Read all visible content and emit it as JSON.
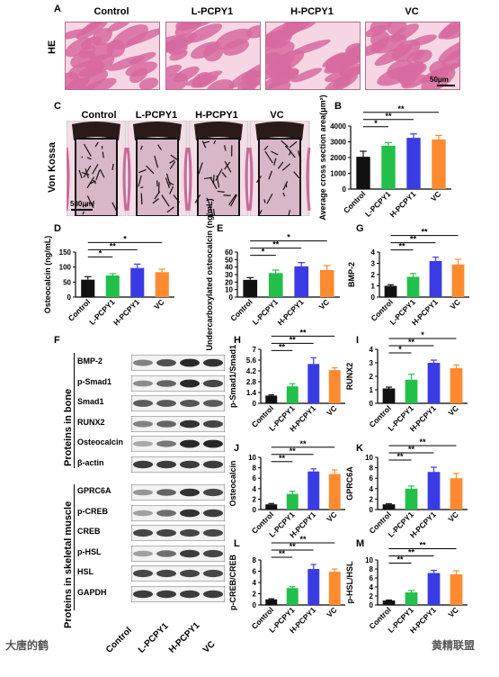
{
  "colors": {
    "control": "#111111",
    "l": "#22c04a",
    "h": "#3b3be6",
    "vc": "#ff8a30",
    "he_bg": "#f0bcd2",
    "fiber": "#d76aa0"
  },
  "panelA": {
    "letter": "A",
    "row_label": "HE",
    "groups": [
      "Control",
      "L-PCPY1",
      "H-PCPY1",
      "VC"
    ],
    "scale": "50μm"
  },
  "panelC": {
    "letter": "C",
    "row_label": "Von Kossa",
    "groups": [
      "Control",
      "L-PCPY1",
      "H-PCPY1",
      "VC"
    ],
    "scale": "500μm"
  },
  "groups": [
    "Control",
    "L-PCPY1",
    "H-PCPY1",
    "VC"
  ],
  "panelF": {
    "letter": "F",
    "bone_section": "Proteins in bone",
    "muscle_section": "Proteins in skeletal muscle",
    "bone_rows": [
      "BMP-2",
      "p-Smad1",
      "Smad1",
      "RUNX2",
      "Osteocalcin",
      "β-actin"
    ],
    "muscle_rows": [
      "GPRC6A",
      "p-CREB",
      "CREB",
      "p-HSL",
      "HSL",
      "GAPDH"
    ],
    "groups": [
      "Control",
      "L-PCPY1",
      "H-PCPY1",
      "VC"
    ]
  },
  "watermark_left": "大唐的鹤",
  "watermark_right": "黄精联盟",
  "chart_data": [
    {
      "id": "B",
      "type": "bar",
      "ylabel": "Average cross section area(μm²)",
      "ylim": [
        0,
        4000
      ],
      "yticks": [
        0,
        1000,
        2000,
        3000,
        4000
      ],
      "categories": [
        "Control",
        "L-PCPY1",
        "H-PCPY1",
        "VC"
      ],
      "values": [
        2050,
        2750,
        3250,
        3150
      ],
      "errors": [
        350,
        200,
        250,
        250
      ],
      "sig": [
        {
          "from": 0,
          "to": 1,
          "label": "*"
        },
        {
          "from": 0,
          "to": 2,
          "label": "**"
        },
        {
          "from": 0,
          "to": 3,
          "label": "**"
        }
      ]
    },
    {
      "id": "D",
      "type": "bar",
      "ylabel": "Osteocalcin (ng/mL)",
      "ylim": [
        0,
        150
      ],
      "yticks": [
        0,
        50,
        100,
        150
      ],
      "categories": [
        "Control",
        "L-PCPY1",
        "H-PCPY1",
        "VC"
      ],
      "values": [
        58,
        72,
        97,
        83
      ],
      "errors": [
        10,
        6,
        13,
        10
      ],
      "sig": [
        {
          "from": 0,
          "to": 1,
          "label": "*"
        },
        {
          "from": 0,
          "to": 2,
          "label": "**"
        },
        {
          "from": 0,
          "to": 3,
          "label": "*"
        }
      ]
    },
    {
      "id": "E",
      "type": "bar",
      "ylabel": "Undercarboxylated osteocalcin (ng/mL)",
      "ylim": [
        0,
        60
      ],
      "yticks": [
        0,
        10,
        20,
        30,
        40,
        50,
        60
      ],
      "categories": [
        "Control",
        "L-PCPY1",
        "H-PCPY1",
        "VC"
      ],
      "values": [
        23,
        32,
        41,
        36
      ],
      "errors": [
        3,
        4,
        5,
        6
      ],
      "sig": [
        {
          "from": 0,
          "to": 1,
          "label": "*"
        },
        {
          "from": 0,
          "to": 2,
          "label": "**"
        },
        {
          "from": 0,
          "to": 3,
          "label": "*"
        }
      ]
    },
    {
      "id": "G",
      "type": "bar",
      "ylabel": "BMP-2",
      "ylim": [
        0,
        4
      ],
      "yticks": [
        0,
        1,
        2,
        3,
        4
      ],
      "categories": [
        "Control",
        "L-PCPY1",
        "H-PCPY1",
        "VC"
      ],
      "values": [
        1.0,
        1.8,
        3.2,
        2.9
      ],
      "errors": [
        0.1,
        0.3,
        0.35,
        0.45
      ],
      "sig": [
        {
          "from": 0,
          "to": 1,
          "label": "**"
        },
        {
          "from": 0,
          "to": 2,
          "label": "**"
        },
        {
          "from": 0,
          "to": 3,
          "label": "**"
        }
      ]
    },
    {
      "id": "H",
      "type": "bar",
      "ylabel": "p-Smad1/Smad1",
      "ylim": [
        0,
        7.0
      ],
      "yticks": [
        0,
        1.4,
        2.8,
        4.2,
        5.6,
        7.0
      ],
      "categories": [
        "Control",
        "L-PCPY1",
        "H-PCPY1",
        "VC"
      ],
      "values": [
        1.0,
        2.2,
        5.1,
        4.3
      ],
      "errors": [
        0.1,
        0.35,
        0.8,
        0.3
      ],
      "sig": [
        {
          "from": 0,
          "to": 1,
          "label": "**"
        },
        {
          "from": 0,
          "to": 2,
          "label": "**"
        },
        {
          "from": 0,
          "to": 3,
          "label": "**"
        }
      ]
    },
    {
      "id": "I",
      "type": "bar",
      "ylabel": "RUNX2",
      "ylim": [
        0,
        4
      ],
      "yticks": [
        0,
        1,
        2,
        3,
        4
      ],
      "categories": [
        "Control",
        "L-PCPY1",
        "H-PCPY1",
        "VC"
      ],
      "values": [
        1.1,
        1.75,
        3.0,
        2.6
      ],
      "errors": [
        0.1,
        0.4,
        0.2,
        0.25
      ],
      "sig": [
        {
          "from": 0,
          "to": 1,
          "label": "*"
        },
        {
          "from": 0,
          "to": 2,
          "label": "**"
        },
        {
          "from": 0,
          "to": 3,
          "label": "*"
        }
      ]
    },
    {
      "id": "J",
      "type": "bar",
      "ylabel": "Osteocalcin",
      "ylim": [
        0,
        10
      ],
      "yticks": [
        0,
        2,
        4,
        6,
        8,
        10
      ],
      "categories": [
        "Control",
        "L-PCPY1",
        "H-PCPY1",
        "VC"
      ],
      "values": [
        1.0,
        3.0,
        7.3,
        6.8
      ],
      "errors": [
        0.15,
        0.5,
        0.5,
        0.8
      ],
      "sig": [
        {
          "from": 0,
          "to": 1,
          "label": "**"
        },
        {
          "from": 0,
          "to": 2,
          "label": "**"
        },
        {
          "from": 0,
          "to": 3,
          "label": "**"
        }
      ]
    },
    {
      "id": "K",
      "type": "bar",
      "ylabel": "GPRC6A",
      "ylim": [
        0,
        10
      ],
      "yticks": [
        0,
        2,
        4,
        6,
        8,
        10
      ],
      "categories": [
        "Control",
        "L-PCPY1",
        "H-PCPY1",
        "VC"
      ],
      "values": [
        1.0,
        4.0,
        7.2,
        6.0
      ],
      "errors": [
        0.1,
        0.5,
        0.9,
        0.9
      ],
      "sig": [
        {
          "from": 0,
          "to": 1,
          "label": "**"
        },
        {
          "from": 0,
          "to": 2,
          "label": "**"
        },
        {
          "from": 0,
          "to": 3,
          "label": "**"
        }
      ]
    },
    {
      "id": "L",
      "type": "bar",
      "ylabel": "p-CREB/CREB",
      "ylim": [
        0,
        8
      ],
      "yticks": [
        0,
        2,
        4,
        6,
        8
      ],
      "categories": [
        "Control",
        "L-PCPY1",
        "H-PCPY1",
        "VC"
      ],
      "values": [
        1.0,
        3.0,
        6.4,
        5.9
      ],
      "errors": [
        0.1,
        0.25,
        0.8,
        0.5
      ],
      "sig": [
        {
          "from": 0,
          "to": 1,
          "label": "**"
        },
        {
          "from": 0,
          "to": 2,
          "label": "**"
        },
        {
          "from": 0,
          "to": 3,
          "label": "**"
        }
      ]
    },
    {
      "id": "M",
      "type": "bar",
      "ylabel": "p-HSL/HSL",
      "ylim": [
        0,
        10
      ],
      "yticks": [
        0,
        2,
        4,
        6,
        8,
        10
      ],
      "categories": [
        "Control",
        "L-PCPY1",
        "H-PCPY1",
        "VC"
      ],
      "values": [
        1.0,
        2.8,
        7.1,
        6.8
      ],
      "errors": [
        0.1,
        0.4,
        0.6,
        0.8
      ],
      "sig": [
        {
          "from": 0,
          "to": 1,
          "label": "**"
        },
        {
          "from": 0,
          "to": 2,
          "label": "**"
        },
        {
          "from": 0,
          "to": 3,
          "label": "**"
        }
      ]
    }
  ]
}
